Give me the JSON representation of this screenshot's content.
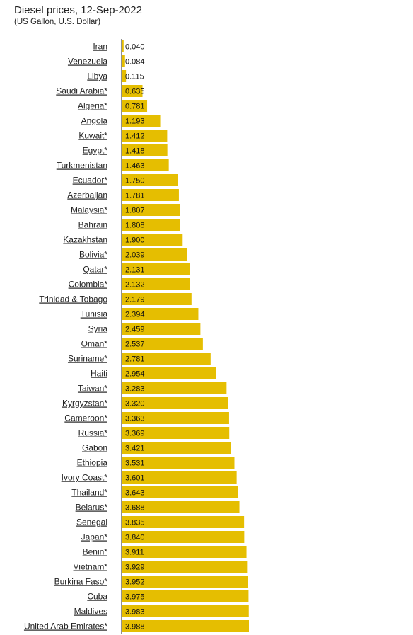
{
  "chart_data": {
    "type": "bar",
    "orientation": "horizontal",
    "title": "Diesel prices, 12-Sep-2022",
    "subtitle": "(US Gallon, U.S. Dollar)",
    "bar_color": "#e5be01",
    "categories": [
      "Iran",
      "Venezuela",
      "Libya",
      "Saudi Arabia*",
      "Algeria*",
      "Angola",
      "Kuwait*",
      "Egypt*",
      "Turkmenistan",
      "Ecuador*",
      "Azerbaijan",
      "Malaysia*",
      "Bahrain",
      "Kazakhstan",
      "Bolivia*",
      "Qatar*",
      "Colombia*",
      "Trinidad & Tobago",
      "Tunisia",
      "Syria",
      "Oman*",
      "Suriname*",
      "Haiti",
      "Taiwan*",
      "Kyrgyzstan*",
      "Cameroon*",
      "Russia*",
      "Gabon",
      "Ethiopia",
      "Ivory Coast*",
      "Thailand*",
      "Belarus*",
      "Senegal",
      "Japan*",
      "Benin*",
      "Vietnam*",
      "Burkina Faso*",
      "Cuba",
      "Maldives",
      "United Arab Emirates*"
    ],
    "values": [
      0.04,
      0.084,
      0.115,
      0.635,
      0.781,
      1.193,
      1.412,
      1.418,
      1.463,
      1.75,
      1.781,
      1.807,
      1.808,
      1.9,
      2.039,
      2.131,
      2.132,
      2.179,
      2.394,
      2.459,
      2.537,
      2.781,
      2.954,
      3.283,
      3.32,
      3.363,
      3.369,
      3.421,
      3.531,
      3.601,
      3.643,
      3.688,
      3.835,
      3.84,
      3.911,
      3.929,
      3.952,
      3.975,
      3.983,
      3.988
    ],
    "value_labels": [
      "0.040",
      "0.084",
      "0.115",
      "0.635",
      "0.781",
      "1.193",
      "1.412",
      "1.418",
      "1.463",
      "1.750",
      "1.781",
      "1.807",
      "1.808",
      "1.900",
      "2.039",
      "2.131",
      "2.132",
      "2.179",
      "2.394",
      "2.459",
      "2.537",
      "2.781",
      "2.954",
      "3.283",
      "3.320",
      "3.363",
      "3.369",
      "3.421",
      "3.531",
      "3.601",
      "3.643",
      "3.688",
      "3.835",
      "3.840",
      "3.911",
      "3.929",
      "3.952",
      "3.975",
      "3.983",
      "3.988"
    ],
    "xlim": [
      0,
      3.988
    ],
    "grid": false,
    "legend": "none"
  }
}
